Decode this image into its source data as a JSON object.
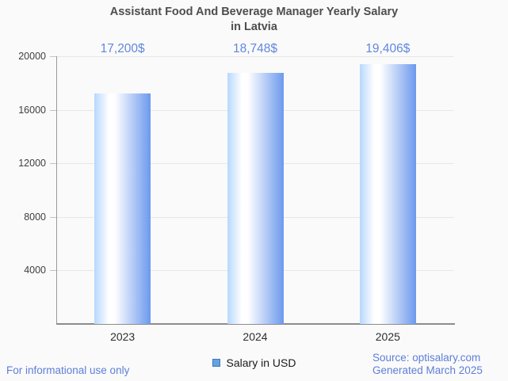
{
  "title": "Assistant Food And Beverage Manager Yearly Salary in Latvia",
  "legend": {
    "label": "Salary in USD"
  },
  "footer": {
    "left": "For informational use only",
    "source": "Source: optisalary.com",
    "generated": "Generated March 2025"
  },
  "colors": {
    "background": "#fafafa",
    "title_text": "#4e4e4e",
    "value_label_text": "#6187de",
    "footer_text": "#5d7fd8",
    "axis_line": "#8c8c8c",
    "gridline": "#e7e7e7",
    "bar_gradient_left": "#b7d8fd",
    "bar_gradient_mid": "#ffffff",
    "bar_gradient_right": "#6c99ee",
    "legend_swatch_fill": "#68a1dc",
    "legend_swatch_border": "#3d7ac0"
  },
  "chart_data": {
    "type": "bar",
    "title": "Assistant Food And Beverage Manager Yearly Salary in Latvia",
    "categories": [
      "2023",
      "2024",
      "2025"
    ],
    "values": [
      17200,
      18748,
      19406
    ],
    "value_labels": [
      "17,200$",
      "18,748$",
      "19,406$"
    ],
    "series_name": "Salary in USD",
    "xlabel": "",
    "ylabel": "",
    "ylim": [
      0,
      20000
    ],
    "yticks": [
      4000,
      8000,
      12000,
      16000,
      20000
    ],
    "grid": true,
    "legend_position": "bottom",
    "bar_orientation": "vertical"
  }
}
